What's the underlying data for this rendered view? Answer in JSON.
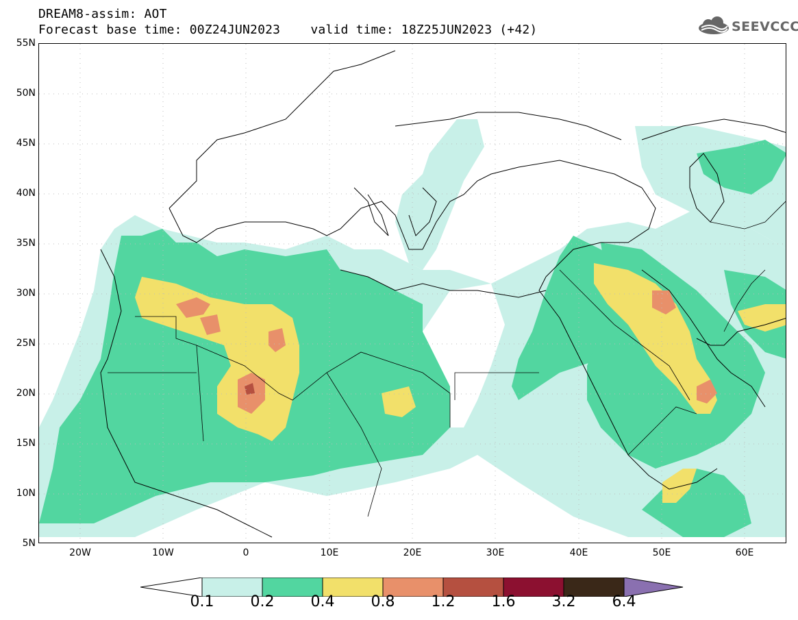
{
  "header": {
    "title": "DREAM8-assim: AOT",
    "base_time_label": "Forecast base time: 00Z24JUN2023",
    "valid_time_label": "valid time: 18Z25JUN2023 (+42)",
    "logo_text": "SEEVCCC"
  },
  "map": {
    "variable": "AOT",
    "lat_range": [
      5,
      55
    ],
    "lon_range": [
      -25,
      65
    ],
    "grid": true,
    "lat_ticks": [
      "55N",
      "50N",
      "45N",
      "40N",
      "35N",
      "30N",
      "25N",
      "20N",
      "15N",
      "10N",
      "5N"
    ],
    "lon_ticks": [
      "20W",
      "10W",
      "0",
      "10E",
      "20E",
      "30E",
      "40E",
      "50E",
      "60E"
    ]
  },
  "colorbar": {
    "levels": [
      "0.1",
      "0.2",
      "0.4",
      "0.8",
      "1.2",
      "1.6",
      "3.2",
      "6.4"
    ],
    "colors": [
      "#c8f0e8",
      "#52d6a0",
      "#f2e06a",
      "#e8906a",
      "#b55040",
      "#8c1030",
      "#3a2818",
      "#8a70b0"
    ]
  },
  "palette": {
    "c1": "#c8f0e8",
    "c2": "#52d6a0",
    "c3": "#f2e06a",
    "c4": "#e8906a",
    "c5": "#b55040"
  }
}
